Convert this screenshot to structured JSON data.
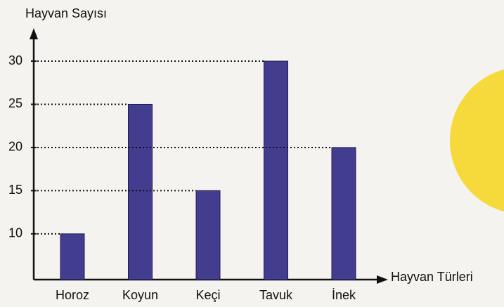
{
  "chart_data": {
    "type": "bar",
    "x_label": "Hayvan Türleri",
    "y_label": "Hayvan Sayısı",
    "categories": [
      "Horoz",
      "Koyun",
      "Keçi",
      "Tavuk",
      "İnek"
    ],
    "values": [
      10,
      25,
      15,
      30,
      20
    ],
    "color": "#433d8f",
    "ylim": [
      4.7,
      33.5
    ],
    "yticks": [
      10,
      15,
      20,
      25,
      30
    ],
    "grid": false
  }
}
